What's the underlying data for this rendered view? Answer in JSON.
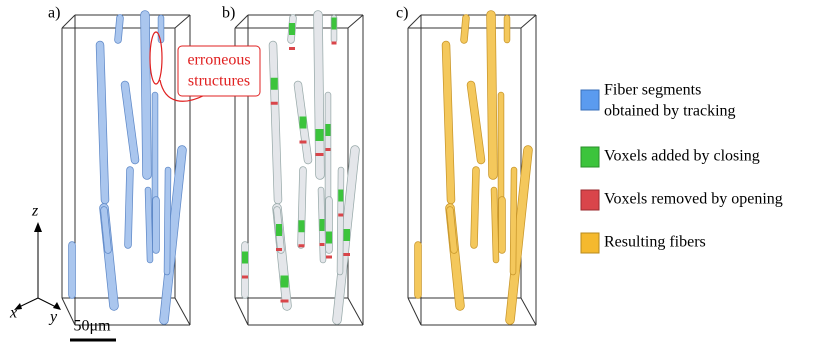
{
  "panels": [
    "a)",
    "b)",
    "c)"
  ],
  "annotation": {
    "lines": [
      "erroneous",
      "structures"
    ]
  },
  "legend": [
    {
      "lines": [
        "Fiber segments",
        "obtained by tracking"
      ]
    },
    {
      "lines": [
        "Voxels added by closing"
      ]
    },
    {
      "lines": [
        "Voxels removed by opening"
      ]
    },
    {
      "lines": [
        "Resulting fibers"
      ]
    }
  ],
  "axes": {
    "z": "z",
    "x": "x",
    "y": "y"
  },
  "scale_bar": "50μm"
}
